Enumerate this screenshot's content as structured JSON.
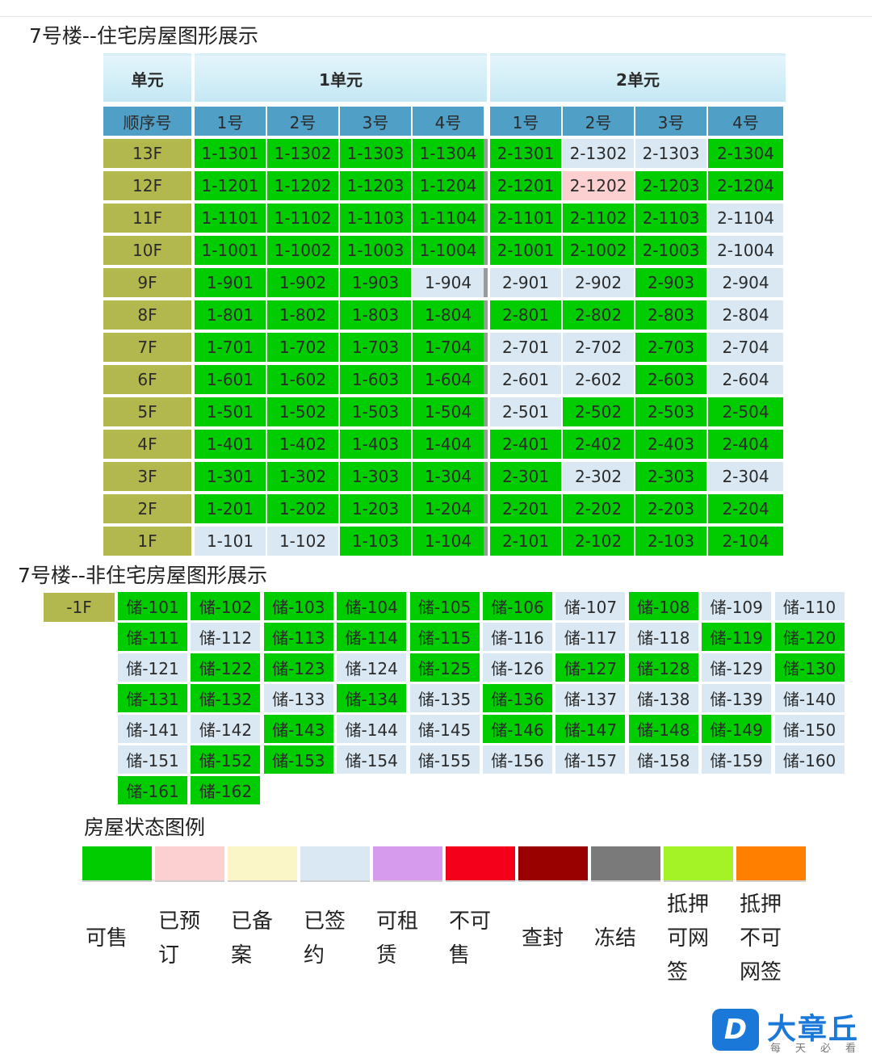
{
  "residential": {
    "title": "7号楼--住宅房屋图形展示",
    "header": {
      "unit_label": "单元",
      "units": [
        "1单元",
        "2单元"
      ]
    },
    "subheader": {
      "order_label": "顺序号",
      "rooms": [
        "1号",
        "2号",
        "3号",
        "4号",
        "1号",
        "2号",
        "3号",
        "4号"
      ]
    },
    "floors": [
      {
        "floor": "13F",
        "rooms": [
          {
            "no": "1-1301",
            "s": "g"
          },
          {
            "no": "1-1302",
            "s": "g"
          },
          {
            "no": "1-1303",
            "s": "g"
          },
          {
            "no": "1-1304",
            "s": "g"
          },
          {
            "no": "2-1301",
            "s": "g"
          },
          {
            "no": "2-1302",
            "s": "b"
          },
          {
            "no": "2-1303",
            "s": "b"
          },
          {
            "no": "2-1304",
            "s": "g"
          }
        ]
      },
      {
        "floor": "12F",
        "rooms": [
          {
            "no": "1-1201",
            "s": "g"
          },
          {
            "no": "1-1202",
            "s": "g"
          },
          {
            "no": "1-1203",
            "s": "g"
          },
          {
            "no": "1-1204",
            "s": "g"
          },
          {
            "no": "2-1201",
            "s": "g"
          },
          {
            "no": "2-1202",
            "s": "p"
          },
          {
            "no": "2-1203",
            "s": "g"
          },
          {
            "no": "2-1204",
            "s": "g"
          }
        ]
      },
      {
        "floor": "11F",
        "rooms": [
          {
            "no": "1-1101",
            "s": "g"
          },
          {
            "no": "1-1102",
            "s": "g"
          },
          {
            "no": "1-1103",
            "s": "g"
          },
          {
            "no": "1-1104",
            "s": "g"
          },
          {
            "no": "2-1101",
            "s": "g"
          },
          {
            "no": "2-1102",
            "s": "g"
          },
          {
            "no": "2-1103",
            "s": "g"
          },
          {
            "no": "2-1104",
            "s": "b"
          }
        ]
      },
      {
        "floor": "10F",
        "rooms": [
          {
            "no": "1-1001",
            "s": "g"
          },
          {
            "no": "1-1002",
            "s": "g"
          },
          {
            "no": "1-1003",
            "s": "g"
          },
          {
            "no": "1-1004",
            "s": "g"
          },
          {
            "no": "2-1001",
            "s": "g"
          },
          {
            "no": "2-1002",
            "s": "g"
          },
          {
            "no": "2-1003",
            "s": "g"
          },
          {
            "no": "2-1004",
            "s": "b"
          }
        ]
      },
      {
        "floor": "9F",
        "rooms": [
          {
            "no": "1-901",
            "s": "g"
          },
          {
            "no": "1-902",
            "s": "g"
          },
          {
            "no": "1-903",
            "s": "g"
          },
          {
            "no": "1-904",
            "s": "b"
          },
          {
            "no": "2-901",
            "s": "b"
          },
          {
            "no": "2-902",
            "s": "b"
          },
          {
            "no": "2-903",
            "s": "g"
          },
          {
            "no": "2-904",
            "s": "b"
          }
        ]
      },
      {
        "floor": "8F",
        "rooms": [
          {
            "no": "1-801",
            "s": "g"
          },
          {
            "no": "1-802",
            "s": "g"
          },
          {
            "no": "1-803",
            "s": "g"
          },
          {
            "no": "1-804",
            "s": "g"
          },
          {
            "no": "2-801",
            "s": "g"
          },
          {
            "no": "2-802",
            "s": "g"
          },
          {
            "no": "2-803",
            "s": "g"
          },
          {
            "no": "2-804",
            "s": "b"
          }
        ]
      },
      {
        "floor": "7F",
        "rooms": [
          {
            "no": "1-701",
            "s": "g"
          },
          {
            "no": "1-702",
            "s": "g"
          },
          {
            "no": "1-703",
            "s": "g"
          },
          {
            "no": "1-704",
            "s": "g"
          },
          {
            "no": "2-701",
            "s": "b"
          },
          {
            "no": "2-702",
            "s": "b"
          },
          {
            "no": "2-703",
            "s": "g"
          },
          {
            "no": "2-704",
            "s": "b"
          }
        ]
      },
      {
        "floor": "6F",
        "rooms": [
          {
            "no": "1-601",
            "s": "g"
          },
          {
            "no": "1-602",
            "s": "g"
          },
          {
            "no": "1-603",
            "s": "g"
          },
          {
            "no": "1-604",
            "s": "g"
          },
          {
            "no": "2-601",
            "s": "b"
          },
          {
            "no": "2-602",
            "s": "b"
          },
          {
            "no": "2-603",
            "s": "g"
          },
          {
            "no": "2-604",
            "s": "b"
          }
        ]
      },
      {
        "floor": "5F",
        "rooms": [
          {
            "no": "1-501",
            "s": "g"
          },
          {
            "no": "1-502",
            "s": "g"
          },
          {
            "no": "1-503",
            "s": "g"
          },
          {
            "no": "1-504",
            "s": "g"
          },
          {
            "no": "2-501",
            "s": "b"
          },
          {
            "no": "2-502",
            "s": "g"
          },
          {
            "no": "2-503",
            "s": "g"
          },
          {
            "no": "2-504",
            "s": "g"
          }
        ]
      },
      {
        "floor": "4F",
        "rooms": [
          {
            "no": "1-401",
            "s": "g"
          },
          {
            "no": "1-402",
            "s": "g"
          },
          {
            "no": "1-403",
            "s": "g"
          },
          {
            "no": "1-404",
            "s": "g"
          },
          {
            "no": "2-401",
            "s": "g"
          },
          {
            "no": "2-402",
            "s": "g"
          },
          {
            "no": "2-403",
            "s": "g"
          },
          {
            "no": "2-404",
            "s": "g"
          }
        ]
      },
      {
        "floor": "3F",
        "rooms": [
          {
            "no": "1-301",
            "s": "g"
          },
          {
            "no": "1-302",
            "s": "g"
          },
          {
            "no": "1-303",
            "s": "g"
          },
          {
            "no": "1-304",
            "s": "g"
          },
          {
            "no": "2-301",
            "s": "g"
          },
          {
            "no": "2-302",
            "s": "b"
          },
          {
            "no": "2-303",
            "s": "g"
          },
          {
            "no": "2-304",
            "s": "b"
          }
        ]
      },
      {
        "floor": "2F",
        "rooms": [
          {
            "no": "1-201",
            "s": "g"
          },
          {
            "no": "1-202",
            "s": "g"
          },
          {
            "no": "1-203",
            "s": "g"
          },
          {
            "no": "1-204",
            "s": "g"
          },
          {
            "no": "2-201",
            "s": "g"
          },
          {
            "no": "2-202",
            "s": "g"
          },
          {
            "no": "2-203",
            "s": "g"
          },
          {
            "no": "2-204",
            "s": "g"
          }
        ]
      },
      {
        "floor": "1F",
        "rooms": [
          {
            "no": "1-101",
            "s": "b"
          },
          {
            "no": "1-102",
            "s": "b"
          },
          {
            "no": "1-103",
            "s": "g"
          },
          {
            "no": "1-104",
            "s": "g"
          },
          {
            "no": "2-101",
            "s": "g"
          },
          {
            "no": "2-102",
            "s": "g"
          },
          {
            "no": "2-103",
            "s": "g"
          },
          {
            "no": "2-104",
            "s": "g"
          }
        ]
      }
    ]
  },
  "nonresidential": {
    "title": "7号楼--非住宅房屋图形展示",
    "floor": "-1F",
    "rows": [
      [
        {
          "no": "储-101",
          "s": "g"
        },
        {
          "no": "储-102",
          "s": "g"
        },
        {
          "no": "储-103",
          "s": "g"
        },
        {
          "no": "储-104",
          "s": "g"
        },
        {
          "no": "储-105",
          "s": "g"
        },
        {
          "no": "储-106",
          "s": "g"
        },
        {
          "no": "储-107",
          "s": "b"
        },
        {
          "no": "储-108",
          "s": "g"
        },
        {
          "no": "储-109",
          "s": "b"
        },
        {
          "no": "储-110",
          "s": "b"
        }
      ],
      [
        {
          "no": "储-111",
          "s": "g"
        },
        {
          "no": "储-112",
          "s": "b"
        },
        {
          "no": "储-113",
          "s": "g"
        },
        {
          "no": "储-114",
          "s": "g"
        },
        {
          "no": "储-115",
          "s": "g"
        },
        {
          "no": "储-116",
          "s": "b"
        },
        {
          "no": "储-117",
          "s": "b"
        },
        {
          "no": "储-118",
          "s": "b"
        },
        {
          "no": "储-119",
          "s": "g"
        },
        {
          "no": "储-120",
          "s": "g"
        }
      ],
      [
        {
          "no": "储-121",
          "s": "b"
        },
        {
          "no": "储-122",
          "s": "g"
        },
        {
          "no": "储-123",
          "s": "g"
        },
        {
          "no": "储-124",
          "s": "b"
        },
        {
          "no": "储-125",
          "s": "g"
        },
        {
          "no": "储-126",
          "s": "b"
        },
        {
          "no": "储-127",
          "s": "g"
        },
        {
          "no": "储-128",
          "s": "g"
        },
        {
          "no": "储-129",
          "s": "b"
        },
        {
          "no": "储-130",
          "s": "g"
        }
      ],
      [
        {
          "no": "储-131",
          "s": "g"
        },
        {
          "no": "储-132",
          "s": "g"
        },
        {
          "no": "储-133",
          "s": "b"
        },
        {
          "no": "储-134",
          "s": "g"
        },
        {
          "no": "储-135",
          "s": "b"
        },
        {
          "no": "储-136",
          "s": "g"
        },
        {
          "no": "储-137",
          "s": "b"
        },
        {
          "no": "储-138",
          "s": "b"
        },
        {
          "no": "储-139",
          "s": "b"
        },
        {
          "no": "储-140",
          "s": "b"
        }
      ],
      [
        {
          "no": "储-141",
          "s": "b"
        },
        {
          "no": "储-142",
          "s": "b"
        },
        {
          "no": "储-143",
          "s": "g"
        },
        {
          "no": "储-144",
          "s": "b"
        },
        {
          "no": "储-145",
          "s": "b"
        },
        {
          "no": "储-146",
          "s": "g"
        },
        {
          "no": "储-147",
          "s": "g"
        },
        {
          "no": "储-148",
          "s": "g"
        },
        {
          "no": "储-149",
          "s": "g"
        },
        {
          "no": "储-150",
          "s": "b"
        }
      ],
      [
        {
          "no": "储-151",
          "s": "b"
        },
        {
          "no": "储-152",
          "s": "g"
        },
        {
          "no": "储-153",
          "s": "g"
        },
        {
          "no": "储-154",
          "s": "b"
        },
        {
          "no": "储-155",
          "s": "b"
        },
        {
          "no": "储-156",
          "s": "b"
        },
        {
          "no": "储-157",
          "s": "b"
        },
        {
          "no": "储-158",
          "s": "b"
        },
        {
          "no": "储-159",
          "s": "b"
        },
        {
          "no": "储-160",
          "s": "b"
        }
      ],
      [
        {
          "no": "储-161",
          "s": "g"
        },
        {
          "no": "储-162",
          "s": "g"
        }
      ]
    ]
  },
  "legend": {
    "title": "房屋状态图例",
    "items": [
      {
        "label": "可售",
        "color": "#00cc00"
      },
      {
        "label": "已预订",
        "color": "#fccfd0"
      },
      {
        "label": "已备案",
        "color": "#fbf6c8"
      },
      {
        "label": "已签约",
        "color": "#d9e8f3"
      },
      {
        "label": "可租赁",
        "color": "#d79bee"
      },
      {
        "label": "不可售",
        "color": "#f5001a"
      },
      {
        "label": "查封",
        "color": "#990000"
      },
      {
        "label": "冻结",
        "color": "#7a7a7a"
      },
      {
        "label": "抵押可网签",
        "color": "#a3f326"
      },
      {
        "label": "抵押不可网签",
        "color": "#ff7f00"
      }
    ]
  },
  "logo": {
    "badge": "D",
    "name": "大章丘",
    "slogan": "每天必看"
  }
}
